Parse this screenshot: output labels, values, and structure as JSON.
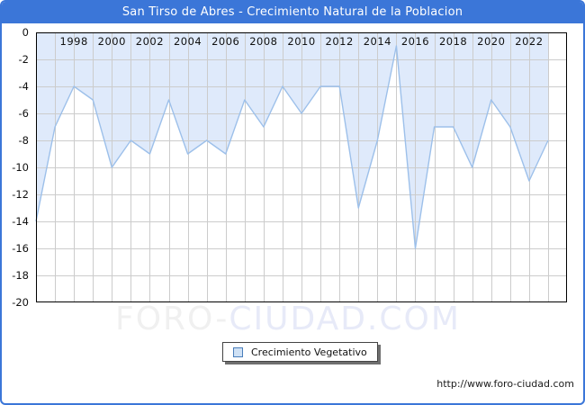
{
  "header": {
    "title": "San Tirso de Abres - Crecimiento Natural de la Poblacion"
  },
  "chart_data": {
    "type": "area",
    "title": "San Tirso de Abres - Crecimiento Natural de la Poblacion",
    "series": [
      {
        "name": "Crecimiento Vegetativo",
        "x": [
          1996,
          1997,
          1998,
          1999,
          2000,
          2001,
          2002,
          2003,
          2004,
          2005,
          2006,
          2007,
          2008,
          2009,
          2010,
          2011,
          2012,
          2013,
          2014,
          2015,
          2016,
          2017,
          2018,
          2019,
          2020,
          2021,
          2022,
          2023
        ],
        "values": [
          -14,
          -7,
          -4,
          -5,
          -10,
          -8,
          -9,
          -5,
          -9,
          -8,
          -9,
          -5,
          -7,
          -4,
          -6,
          -4,
          -4,
          -13,
          -8,
          -1,
          -16,
          -7,
          -7,
          -10,
          -5,
          -7,
          -11,
          -8
        ]
      }
    ],
    "ylim": [
      -20,
      0
    ],
    "y_ticks": [
      0,
      -2,
      -4,
      -6,
      -8,
      -10,
      -12,
      -14,
      -16,
      -18,
      -20
    ],
    "x_tick_labels": [
      1998,
      2000,
      2002,
      2004,
      2006,
      2008,
      2010,
      2012,
      2014,
      2016,
      2018,
      2020,
      2022
    ],
    "grid": true,
    "legend_position": "bottom-center",
    "colors": {
      "area_fill": "#dfeafb",
      "line": "#9dc0ea",
      "gridline": "#cccccc",
      "plot_border": "#000000",
      "axis_text": "#111111",
      "plot_background": "#ffffff"
    }
  },
  "legend": {
    "label": "Crecimiento Vegetativo"
  },
  "watermark": {
    "part1": "FORO-",
    "part2": "CIUDAD.COM"
  },
  "footer": {
    "url": "http://www.foro-ciudad.com"
  }
}
